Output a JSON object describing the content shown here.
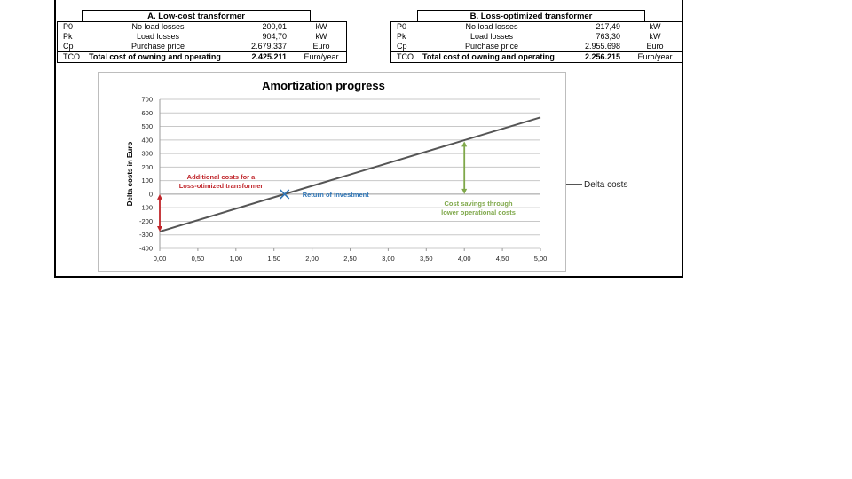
{
  "table_a": {
    "title": "A. Low-cost transformer",
    "rows": [
      {
        "sym": "P0",
        "desc": "No load losses",
        "val": "200,01",
        "unit": "kW"
      },
      {
        "sym": "Pk",
        "desc": "Load losses",
        "val": "904,70",
        "unit": "kW"
      },
      {
        "sym": "Cp",
        "desc": "Purchase price",
        "val": "2.679.337",
        "unit": "Euro"
      }
    ],
    "tco": {
      "sym": "TCO",
      "desc": "Total cost of owning and operating",
      "val": "2.425.211",
      "unit": "Euro/year"
    }
  },
  "table_b": {
    "title": "B. Loss-optimized transformer",
    "rows": [
      {
        "sym": "P0",
        "desc": "No load losses",
        "val": "217,49",
        "unit": "kW"
      },
      {
        "sym": "Pk",
        "desc": "Load losses",
        "val": "763,30",
        "unit": "kW"
      },
      {
        "sym": "Cp",
        "desc": "Purchase price",
        "val": "2.955.698",
        "unit": "Euro"
      }
    ],
    "tco": {
      "sym": "TCO",
      "desc": "Total cost of owning and operating",
      "val": "2.256.215",
      "unit": "Euro/year"
    }
  },
  "chart_data": {
    "type": "line",
    "title": "Amortization progress",
    "xlabel": "",
    "ylabel": "Delta costs in Euro",
    "xlim": [
      0,
      5
    ],
    "ylim": [
      -400,
      700
    ],
    "x_ticks": [
      "0,00",
      "0,50",
      "1,00",
      "1,50",
      "2,00",
      "2,50",
      "3,00",
      "3,50",
      "4,00",
      "4,50",
      "5,00"
    ],
    "y_ticks": [
      "700",
      "600",
      "500",
      "400",
      "300",
      "200",
      "100",
      "0",
      "-100",
      "-200",
      "-300",
      "-400"
    ],
    "grid": true,
    "legend_position": "right",
    "series": [
      {
        "name": "Delta costs",
        "x": [
          0,
          5
        ],
        "values": [
          -276,
          567
        ],
        "color": "#555555"
      }
    ],
    "annotations": {
      "additional_costs": {
        "lines": [
          "Additional costs for a",
          "Loss-otimized transformer"
        ],
        "color": "#c0262b"
      },
      "return_of_investment": {
        "text": "Return of investment",
        "x": 1.64,
        "y": 0,
        "color": "#2e75b6"
      },
      "cost_savings": {
        "lines": [
          "Cost savings through",
          "lower operational costs"
        ],
        "color": "#7fa84a"
      }
    }
  }
}
